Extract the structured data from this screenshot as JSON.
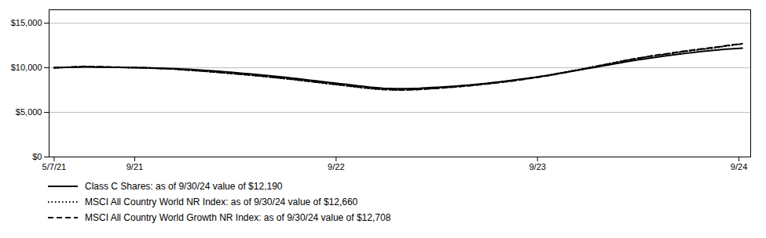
{
  "chart_data": {
    "type": "line",
    "xlim": [
      -0.3,
      41.5
    ],
    "xticks": [
      {
        "value": 0,
        "label": "5/7/21"
      },
      {
        "value": 4.8,
        "label": "9/21"
      },
      {
        "value": 16.8,
        "label": "9/22"
      },
      {
        "value": 28.8,
        "label": "9/23"
      },
      {
        "value": 40.8,
        "label": "9/24"
      }
    ],
    "ylim": [
      0,
      16500
    ],
    "yticks": [
      {
        "value": 0,
        "label": "$0"
      },
      {
        "value": 5000,
        "label": "$5,000"
      },
      {
        "value": 10000,
        "label": "$10,000"
      },
      {
        "value": 15000,
        "label": "$15,000"
      }
    ],
    "grid": true,
    "legend": "bottom",
    "series": [
      {
        "name": "Class C Shares: as of 9/30/24 value of $12,190",
        "color": "#000000",
        "line_style": "solid",
        "x": [
          0,
          0.3628,
          0.7257,
          1.0885,
          1.4513,
          1.8142,
          2.177,
          2.5398,
          2.9027,
          3.2655,
          3.6283,
          3.9912,
          4.354,
          4.7168,
          5.0796,
          5.4425,
          5.8053,
          6.1681,
          6.531,
          6.8938,
          7.2566,
          7.6195,
          7.9823,
          8.3451,
          8.708,
          9.0708,
          9.4336,
          9.7965,
          10.1593,
          10.5221,
          10.885,
          11.2478,
          11.6106,
          11.9735,
          12.3363,
          12.6991,
          13.0619,
          13.4248,
          13.7876,
          14.1504,
          14.5133,
          14.8761,
          15.2389,
          15.6018,
          15.9646,
          16.3274,
          16.6903,
          17.0531,
          17.4159,
          17.7788,
          18.1416,
          18.5044,
          18.8673,
          19.2301,
          19.5929,
          19.9558,
          20.3186,
          20.6814,
          21.0442,
          21.4071,
          21.7699,
          22.1327,
          22.4956,
          22.8584,
          23.2212,
          23.5841,
          23.9469,
          24.3097,
          24.6726,
          25.0354,
          25.3982,
          25.7611,
          26.1239,
          26.4867,
          26.8496,
          27.2124,
          27.5752,
          27.9381,
          28.3009,
          28.6637,
          29.0265,
          29.3894,
          29.7522,
          30.115,
          30.4779,
          30.8407,
          31.2035,
          31.5664,
          31.9292,
          32.292,
          32.6549,
          33.0177,
          33.3805,
          33.7434,
          34.1062,
          34.469,
          34.8319,
          35.1947,
          35.5575,
          35.9204,
          36.2832,
          36.646,
          37.0088,
          37.3717,
          37.7345,
          38.0973,
          38.4602,
          38.823,
          39.1858,
          39.5487,
          39.9115,
          40.2743,
          40.6372,
          41
        ],
        "values": [
          10000,
          10020,
          10040,
          10060,
          10080,
          10100,
          10090,
          10080,
          10070,
          10060,
          10050,
          10040,
          10030,
          10020,
          10010,
          10000,
          9980,
          9960,
          9940,
          9920,
          9900,
          9860,
          9820,
          9780,
          9740,
          9700,
          9650,
          9600,
          9550,
          9500,
          9440,
          9380,
          9320,
          9260,
          9200,
          9130,
          9060,
          8990,
          8920,
          8850,
          8770,
          8690,
          8610,
          8530,
          8450,
          8370,
          8290,
          8210,
          8130,
          8050,
          7970,
          7890,
          7820,
          7760,
          7700,
          7680,
          7660,
          7650,
          7660,
          7680,
          7700,
          7740,
          7780,
          7820,
          7860,
          7900,
          7950,
          8000,
          8060,
          8120,
          8190,
          8260,
          8330,
          8410,
          8490,
          8570,
          8660,
          8750,
          8840,
          8930,
          9030,
          9130,
          9240,
          9360,
          9480,
          9600,
          9720,
          9840,
          9960,
          10080,
          10200,
          10320,
          10440,
          10560,
          10680,
          10800,
          10900,
          11000,
          11100,
          11200,
          11290,
          11380,
          11470,
          11560,
          11640,
          11720,
          11800,
          11870,
          11940,
          12010,
          12060,
          12110,
          12150,
          12190
        ]
      },
      {
        "name": "MSCI All Country World NR Index: as of 9/30/24 value of $12,660",
        "color": "#000000",
        "line_style": "dotted",
        "x": [
          0,
          0.3596,
          0.7193,
          1.0789,
          1.4386,
          1.7982,
          2.1579,
          2.5175,
          2.8772,
          3.2368,
          3.5965,
          3.9561,
          4.3158,
          4.6754,
          5.0351,
          5.3947,
          5.7544,
          6.114,
          6.4737,
          6.8333,
          7.193,
          7.5526,
          7.9123,
          8.2719,
          8.6316,
          8.9912,
          9.3509,
          9.7105,
          10.0702,
          10.4298,
          10.7895,
          11.1491,
          11.5088,
          11.8684,
          12.2281,
          12.5877,
          12.9474,
          13.307,
          13.6667,
          14.0263,
          14.386,
          14.7456,
          15.1053,
          15.4649,
          15.8246,
          16.1842,
          16.5439,
          16.9035,
          17.2632,
          17.6228,
          17.9825,
          18.3421,
          18.7018,
          19.0614,
          19.4211,
          19.7807,
          20.1404,
          20.5,
          20.8596,
          21.2193,
          21.5789,
          21.9386,
          22.2982,
          22.6579,
          23.0175,
          23.3772,
          23.7368,
          24.0965,
          24.4561,
          24.8158,
          25.1754,
          25.5351,
          25.8947,
          26.2544,
          26.614,
          26.9737,
          27.3333,
          27.693,
          28.0526,
          28.4123,
          28.7719,
          29.1316,
          29.4912,
          29.8509,
          30.2105,
          30.5702,
          30.9298,
          31.2895,
          31.6491,
          32.0088,
          32.3684,
          32.7281,
          33.0877,
          33.4474,
          33.807,
          34.1667,
          34.5263,
          34.886,
          35.2456,
          35.6053,
          35.9649,
          36.3246,
          36.6842,
          37.0439,
          37.4035,
          37.7632,
          38.1228,
          38.4825,
          38.8421,
          39.2018,
          39.5614,
          39.9211,
          40.2807,
          40.6404,
          41
        ],
        "values": [
          10000,
          10025,
          10050,
          10075,
          10100,
          10125,
          10110,
          10095,
          10080,
          10065,
          10050,
          10035,
          10020,
          10005,
          9990,
          9975,
          9950,
          9925,
          9900,
          9875,
          9850,
          9800,
          9750,
          9700,
          9650,
          9600,
          9545,
          9490,
          9435,
          9380,
          9320,
          9260,
          9200,
          9140,
          9080,
          9010,
          8940,
          8870,
          8800,
          8730,
          8650,
          8570,
          8490,
          8410,
          8330,
          8250,
          8170,
          8090,
          8010,
          7930,
          7850,
          7770,
          7700,
          7640,
          7580,
          7555,
          7530,
          7510,
          7520,
          7545,
          7570,
          7615,
          7660,
          7705,
          7750,
          7795,
          7850,
          7905,
          7965,
          8025,
          8095,
          8165,
          8235,
          8315,
          8395,
          8475,
          8570,
          8665,
          8760,
          8860,
          8965,
          9070,
          9185,
          9310,
          9435,
          9560,
          9685,
          9810,
          9940,
          10070,
          10200,
          10330,
          10465,
          10600,
          10735,
          10870,
          10980,
          11090,
          11200,
          11310,
          11400,
          11490,
          11590,
          11690,
          11780,
          11870,
          11960,
          12040,
          12120,
          12200,
          12300,
          12400,
          12500,
          12600,
          12660
        ]
      },
      {
        "name": "MSCI All Country World Growth NR Index: as of 9/30/24 value of $12,708",
        "color": "#000000",
        "line_style": "dashed",
        "x": [
          0,
          0.3628,
          0.7257,
          1.0885,
          1.4513,
          1.8142,
          2.177,
          2.5398,
          2.9027,
          3.2655,
          3.6283,
          3.9912,
          4.354,
          4.7168,
          5.0796,
          5.4425,
          5.8053,
          6.1681,
          6.531,
          6.8938,
          7.2566,
          7.6195,
          7.9823,
          8.3451,
          8.708,
          9.0708,
          9.4336,
          9.7965,
          10.1593,
          10.5221,
          10.885,
          11.2478,
          11.6106,
          11.9735,
          12.3363,
          12.6991,
          13.0619,
          13.4248,
          13.7876,
          14.1504,
          14.5133,
          14.8761,
          15.2389,
          15.6018,
          15.9646,
          16.3274,
          16.6903,
          17.0531,
          17.4159,
          17.7788,
          18.1416,
          18.5044,
          18.8673,
          19.2301,
          19.5929,
          19.9558,
          20.3186,
          20.6814,
          21.0442,
          21.4071,
          21.7699,
          22.1327,
          22.4956,
          22.8584,
          23.2212,
          23.5841,
          23.9469,
          24.3097,
          24.6726,
          25.0354,
          25.3982,
          25.7611,
          26.1239,
          26.4867,
          26.8496,
          27.2124,
          27.5752,
          27.9381,
          28.3009,
          28.6637,
          29.0265,
          29.3894,
          29.7522,
          30.115,
          30.4779,
          30.8407,
          31.2035,
          31.5664,
          31.9292,
          32.292,
          32.6549,
          33.0177,
          33.3805,
          33.7434,
          34.1062,
          34.469,
          34.8319,
          35.1947,
          35.5575,
          35.9204,
          36.2832,
          36.646,
          37.0088,
          37.3717,
          37.7345,
          38.0973,
          38.4602,
          38.823,
          39.1858,
          39.5487,
          39.9115,
          40.2743,
          40.6372,
          41
        ],
        "values": [
          10000,
          10030,
          10060,
          10090,
          10120,
          10150,
          10135,
          10120,
          10105,
          10090,
          10075,
          10060,
          10045,
          10030,
          10015,
          10000,
          9970,
          9940,
          9910,
          9880,
          9850,
          9800,
          9750,
          9700,
          9650,
          9600,
          9545,
          9490,
          9435,
          9380,
          9320,
          9260,
          9200,
          9140,
          9080,
          9010,
          8940,
          8870,
          8800,
          8730,
          8650,
          8570,
          8490,
          8410,
          8330,
          8250,
          8170,
          8090,
          8010,
          7930,
          7850,
          7770,
          7700,
          7640,
          7580,
          7555,
          7530,
          7510,
          7520,
          7545,
          7570,
          7615,
          7660,
          7705,
          7750,
          7800,
          7855,
          7910,
          7975,
          8040,
          8110,
          8180,
          8255,
          8335,
          8415,
          8500,
          8595,
          8690,
          8790,
          8895,
          9005,
          9115,
          9235,
          9360,
          9490,
          9620,
          9750,
          9880,
          10015,
          10150,
          10285,
          10420,
          10560,
          10700,
          10840,
          10980,
          11090,
          11200,
          11315,
          11430,
          11520,
          11610,
          11715,
          11820,
          11910,
          12000,
          12090,
          12170,
          12255,
          12340,
          12440,
          12540,
          12620,
          12708
        ]
      }
    ]
  }
}
